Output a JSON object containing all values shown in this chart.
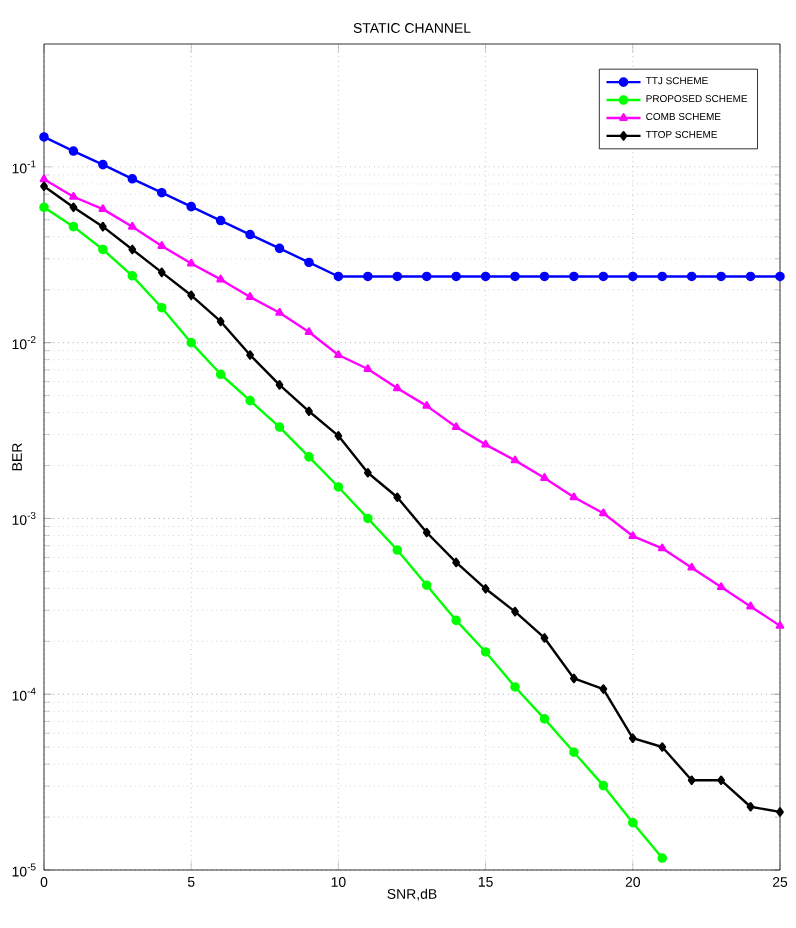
{
  "chart_data": {
    "type": "line",
    "title": "STATIC CHANNEL",
    "xlabel": "SNR,dB",
    "ylabel": "BER",
    "x": [
      0,
      1,
      2,
      3,
      4,
      5,
      6,
      7,
      8,
      9,
      10,
      11,
      12,
      13,
      14,
      15,
      16,
      17,
      18,
      19,
      20,
      21,
      22,
      23,
      24,
      25
    ],
    "series": [
      {
        "name": "TTJ SCHEME",
        "color": "#0000ff",
        "marker": "circle",
        "values": [
          0.148,
          0.123,
          0.103,
          0.0855,
          0.0713,
          0.0594,
          0.0495,
          0.0412,
          0.0344,
          0.0286,
          0.0238,
          0.0238,
          0.0238,
          0.0238,
          0.0238,
          0.0238,
          0.0238,
          0.0238,
          0.0238,
          0.0238,
          0.0238,
          0.0238,
          0.0238,
          0.0238,
          0.0238,
          0.0238
        ]
      },
      {
        "name": "PROPOSED SCHEME",
        "color": "#00ff00",
        "marker": "circle",
        "values": [
          0.0589,
          0.0457,
          0.0339,
          0.024,
          0.0158,
          0.01,
          0.00661,
          0.00468,
          0.00331,
          0.00224,
          0.00151,
          0.001,
          0.000661,
          0.000417,
          0.000263,
          0.000174,
          0.00011,
          7.24e-05,
          4.68e-05,
          3.02e-05,
          1.86e-05,
          1.17e-05,
          null,
          null,
          null,
          null
        ]
      },
      {
        "name": "COMB SCHEME",
        "color": "#ff00ff",
        "marker": "triangle",
        "values": [
          0.0851,
          0.0676,
          0.0575,
          0.0457,
          0.0355,
          0.0282,
          0.0229,
          0.0182,
          0.0148,
          0.0115,
          0.00851,
          0.00708,
          0.0055,
          0.00437,
          0.00331,
          0.00263,
          0.00214,
          0.0017,
          0.00132,
          0.00107,
          0.000794,
          0.000676,
          0.000525,
          0.000407,
          0.000316,
          0.000245
        ]
      },
      {
        "name": "TTOP SCHEME",
        "color": "#000000",
        "marker": "diamond",
        "values": [
          0.0776,
          0.0589,
          0.0457,
          0.0339,
          0.0251,
          0.0186,
          0.0132,
          0.00851,
          0.00575,
          0.00407,
          0.00295,
          0.00182,
          0.00132,
          0.000832,
          0.000562,
          0.000398,
          0.000295,
          0.000209,
          0.000123,
          0.000107,
          5.62e-05,
          5.01e-05,
          3.24e-05,
          3.24e-05,
          2.29e-05,
          2.14e-05
        ]
      }
    ],
    "log": "y",
    "grid": true,
    "legend": "top right",
    "xlim": [
      0,
      25
    ],
    "xticks": [
      0,
      5,
      10,
      15,
      20,
      25
    ],
    "ylim": [
      1e-05,
      0.5
    ],
    "yticks": [
      {
        "value": 1e-05,
        "label": "10$^{-5}$"
      },
      {
        "value": 0.0001,
        "label": "10$^{-4}$"
      },
      {
        "value": 0.001,
        "label": "10$^{-3}$"
      },
      {
        "value": 0.01,
        "label": "10$^{-2}$"
      },
      {
        "value": 0.1,
        "label": "10$^{-1}$"
      }
    ]
  }
}
